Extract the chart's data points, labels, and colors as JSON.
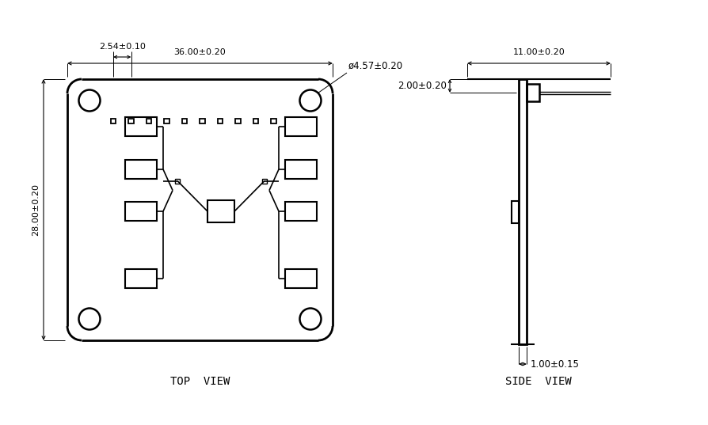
{
  "bg_color": "#ffffff",
  "line_color": "#000000",
  "dim_color": "#000000",
  "font_size": 8.5,
  "label_font_size": 9,
  "title_font_size": 10,
  "top_view_label": "TOP  VIEW",
  "side_view_label": "SIDE  VIEW",
  "dim_36": "36.00±0.20",
  "dim_28": "28.00±0.20",
  "dim_254": "2.54±0.10",
  "dim_457": "ø4.57±0.20",
  "dim_11": "11.00±0.20",
  "dim_2": "2.00±0.20",
  "dim_1": "1.00±0.15"
}
